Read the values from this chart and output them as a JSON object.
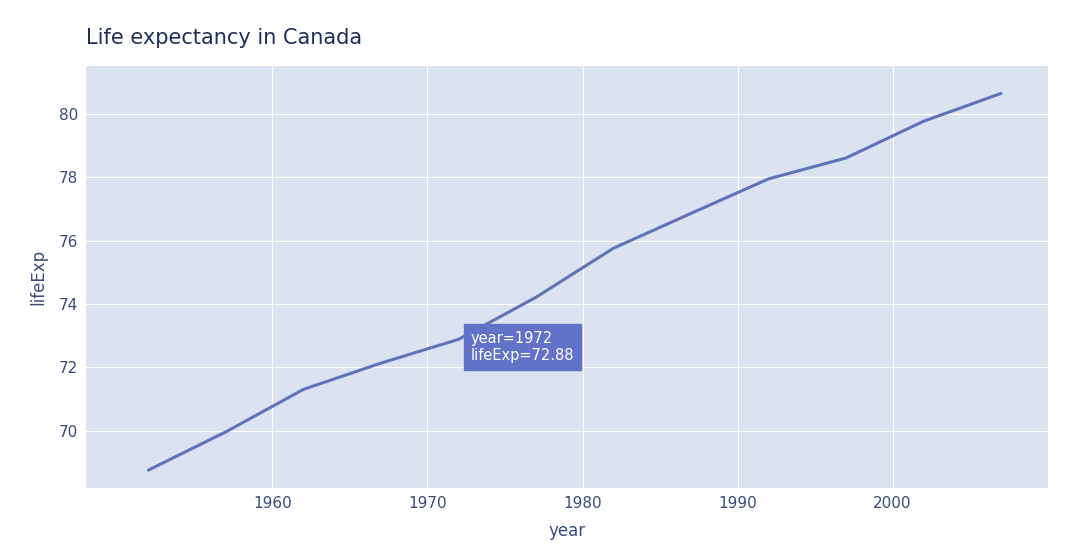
{
  "title": "Life expectancy in Canada",
  "xlabel": "year",
  "ylabel": "lifeExp",
  "plot_bg_color": "#dce3f0",
  "figure_bg_color": "#ffffff",
  "line_color": "#6272b8",
  "line_width": 2.2,
  "xlim": [
    1948,
    2010
  ],
  "ylim": [
    68.2,
    81.5
  ],
  "xticks": [
    1960,
    1970,
    1980,
    1990,
    2000
  ],
  "yticks": [
    70,
    72,
    74,
    76,
    78,
    80
  ],
  "years": [
    1952,
    1957,
    1962,
    1967,
    1972,
    1977,
    1982,
    1987,
    1992,
    1997,
    2002,
    2007
  ],
  "lifeExp": [
    68.75,
    69.96,
    71.3,
    72.13,
    72.88,
    74.21,
    75.76,
    76.86,
    77.95,
    78.61,
    79.77,
    80.65
  ],
  "annotation_year": 1972,
  "annotation_lifeExp": 72.88,
  "annotation_text": "year=1972\nlifeExp=72.88",
  "annotation_box_color": "#6272c8",
  "annotation_text_color": "#ffffff",
  "title_color": "#1f2d5a",
  "tick_color": "#3a4a7a",
  "label_color": "#3a4a7a",
  "grid_color": "#ffffff",
  "title_fontsize": 15,
  "axis_label_fontsize": 12,
  "tick_fontsize": 11,
  "annotation_fontsize": 10.5
}
